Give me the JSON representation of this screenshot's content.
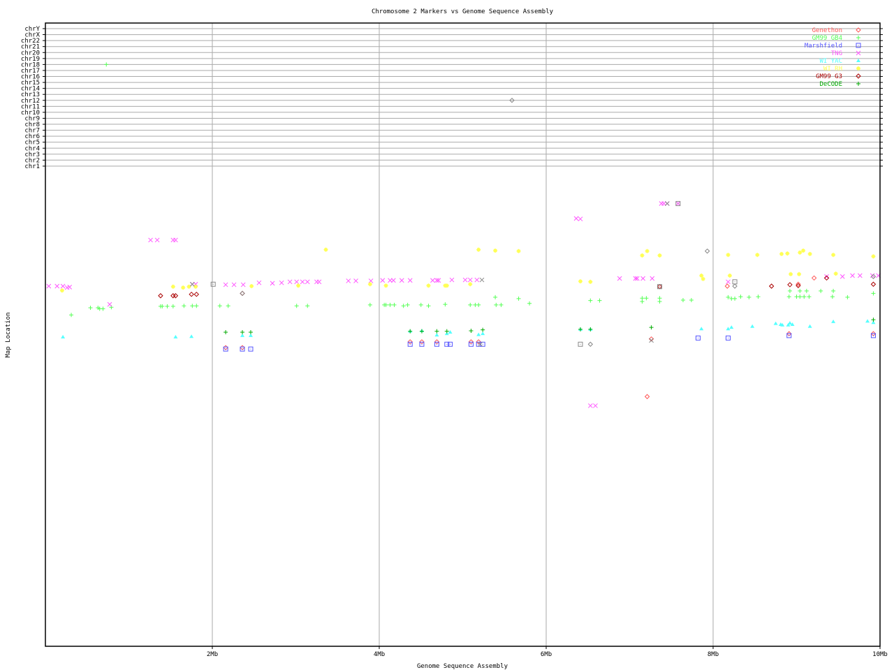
{
  "chart_data": {
    "type": "scatter",
    "title": "Chromosome 2 Markers vs Genome Sequence Assembly",
    "xlabel": "Genome Sequence Assembly",
    "ylabel": "Map Location",
    "xlim": [
      0,
      10
    ],
    "x_ticks": [
      {
        "value": 2,
        "label": "2Mb"
      },
      {
        "value": 4,
        "label": "4Mb"
      },
      {
        "value": 6,
        "label": "6Mb"
      },
      {
        "value": 8,
        "label": "8Mb"
      },
      {
        "value": 10,
        "label": "10Mb"
      }
    ],
    "ylim": [
      0,
      100
    ],
    "chromosome_rows": [
      "chr1",
      "chr2",
      "chr3",
      "chr4",
      "chr5",
      "chr6",
      "chr7",
      "chr8",
      "chr9",
      "chr10",
      "chr11",
      "chr12",
      "chr13",
      "chr14",
      "chr15",
      "chr16",
      "chr17",
      "chr18",
      "chr19",
      "chr20",
      "chr21",
      "chr22",
      "chrX",
      "chrY"
    ],
    "grid": true,
    "legend_position": "top-right",
    "series": [
      {
        "name": "Genethon",
        "color": "#ff5555",
        "marker": "diamond",
        "points": [
          [
            2.16,
            62.2
          ],
          [
            2.36,
            62.2
          ],
          [
            4.37,
            63.4
          ],
          [
            4.51,
            63.4
          ],
          [
            4.69,
            63.4
          ],
          [
            5.1,
            63.4
          ],
          [
            5.19,
            63.4
          ],
          [
            7.26,
            64.0
          ],
          [
            8.91,
            65.1
          ],
          [
            9.92,
            65.1
          ],
          [
            7.21,
            52.0
          ],
          [
            8.17,
            75.0
          ],
          [
            9.02,
            75.4
          ],
          [
            9.21,
            76.7
          ]
        ]
      },
      {
        "name": "GM99 GB4",
        "color": "#55ff55",
        "marker": "plus",
        "points": [
          [
            0.73,
            "chr18"
          ],
          [
            0.31,
            69.0
          ],
          [
            0.54,
            70.5
          ],
          [
            0.63,
            70.5
          ],
          [
            0.65,
            70.3
          ],
          [
            0.69,
            70.3
          ],
          [
            0.79,
            70.6
          ],
          [
            1.38,
            70.8
          ],
          [
            1.4,
            70.8
          ],
          [
            1.46,
            70.8
          ],
          [
            1.53,
            70.8
          ],
          [
            1.66,
            70.9
          ],
          [
            1.76,
            70.9
          ],
          [
            1.81,
            70.9
          ],
          [
            2.09,
            70.9
          ],
          [
            2.19,
            70.9
          ],
          [
            3.01,
            70.9
          ],
          [
            3.14,
            70.9
          ],
          [
            3.89,
            71.1
          ],
          [
            4.06,
            71.1
          ],
          [
            4.08,
            71.1
          ],
          [
            4.13,
            71.1
          ],
          [
            4.18,
            71.1
          ],
          [
            4.29,
            70.9
          ],
          [
            4.34,
            71.1
          ],
          [
            4.5,
            71.1
          ],
          [
            4.59,
            70.9
          ],
          [
            4.79,
            71.2
          ],
          [
            5.09,
            71.1
          ],
          [
            5.15,
            71.1
          ],
          [
            5.19,
            71.1
          ],
          [
            5.4,
            71.1
          ],
          [
            5.46,
            71.1
          ],
          [
            5.39,
            72.7
          ],
          [
            5.67,
            72.4
          ],
          [
            5.8,
            71.4
          ],
          [
            6.53,
            72.0
          ],
          [
            6.64,
            72.0
          ],
          [
            7.15,
            72.5
          ],
          [
            7.15,
            71.8
          ],
          [
            7.2,
            72.5
          ],
          [
            7.36,
            72.5
          ],
          [
            7.36,
            71.8
          ],
          [
            7.64,
            72.1
          ],
          [
            7.74,
            72.1
          ],
          [
            8.18,
            72.7
          ],
          [
            8.22,
            72.4
          ],
          [
            8.26,
            72.4
          ],
          [
            8.33,
            72.8
          ],
          [
            8.43,
            72.7
          ],
          [
            8.54,
            72.8
          ],
          [
            8.91,
            72.8
          ],
          [
            9.0,
            72.8
          ],
          [
            9.04,
            72.8
          ],
          [
            9.09,
            72.8
          ],
          [
            9.15,
            72.8
          ],
          [
            8.92,
            74.0
          ],
          [
            9.04,
            74.0
          ],
          [
            9.12,
            74.0
          ],
          [
            9.29,
            74.0
          ],
          [
            9.43,
            72.8
          ],
          [
            9.44,
            74.0
          ],
          [
            9.61,
            72.7
          ],
          [
            9.92,
            73.5
          ]
        ]
      },
      {
        "name": "Marshfield",
        "color": "#5555ff",
        "marker": "square",
        "points": [
          [
            2.16,
            61.9
          ],
          [
            2.36,
            61.9
          ],
          [
            2.46,
            61.9
          ],
          [
            4.37,
            62.9
          ],
          [
            4.51,
            62.9
          ],
          [
            4.69,
            62.9
          ],
          [
            4.81,
            62.9
          ],
          [
            4.85,
            62.9
          ],
          [
            5.1,
            62.9
          ],
          [
            5.19,
            62.9
          ],
          [
            5.24,
            62.9
          ],
          [
            7.82,
            64.2
          ],
          [
            8.18,
            64.2
          ],
          [
            8.91,
            64.7
          ],
          [
            9.92,
            64.7
          ]
        ]
      },
      {
        "name": "TNG",
        "color": "#ff55ff",
        "marker": "x",
        "points": [
          [
            0.04,
            75.0
          ],
          [
            0.14,
            75.0
          ],
          [
            0.21,
            75.0
          ],
          [
            0.26,
            74.7
          ],
          [
            0.29,
            74.8
          ],
          [
            0.77,
            71.2
          ],
          [
            1.26,
            84.6
          ],
          [
            1.34,
            84.6
          ],
          [
            1.53,
            84.6
          ],
          [
            1.56,
            84.6
          ],
          [
            1.76,
            75.4
          ],
          [
            1.8,
            75.4
          ],
          [
            2.16,
            75.3
          ],
          [
            2.26,
            75.3
          ],
          [
            2.37,
            75.3
          ],
          [
            2.56,
            75.7
          ],
          [
            2.72,
            75.6
          ],
          [
            2.83,
            75.7
          ],
          [
            2.93,
            75.9
          ],
          [
            3.01,
            75.9
          ],
          [
            3.08,
            75.9
          ],
          [
            3.14,
            75.9
          ],
          [
            3.25,
            75.9
          ],
          [
            3.28,
            75.9
          ],
          [
            3.63,
            76.1
          ],
          [
            3.72,
            76.1
          ],
          [
            3.9,
            76.1
          ],
          [
            4.04,
            76.2
          ],
          [
            4.13,
            76.2
          ],
          [
            4.17,
            76.2
          ],
          [
            4.27,
            76.2
          ],
          [
            4.37,
            76.2
          ],
          [
            4.64,
            76.2
          ],
          [
            4.69,
            76.2
          ],
          [
            4.71,
            76.2
          ],
          [
            4.87,
            76.3
          ],
          [
            5.03,
            76.3
          ],
          [
            5.09,
            76.3
          ],
          [
            5.17,
            76.3
          ],
          [
            6.36,
            89.1
          ],
          [
            6.41,
            89.0
          ],
          [
            7.38,
            92.2
          ],
          [
            7.41,
            92.2
          ],
          [
            7.45,
            92.2
          ],
          [
            7.58,
            92.2
          ],
          [
            6.88,
            76.6
          ],
          [
            7.07,
            76.6
          ],
          [
            7.09,
            76.6
          ],
          [
            7.16,
            76.6
          ],
          [
            7.27,
            76.6
          ],
          [
            8.18,
            75.9
          ],
          [
            9.36,
            77.0
          ],
          [
            9.55,
            77.0
          ],
          [
            9.67,
            77.2
          ],
          [
            9.76,
            77.2
          ],
          [
            9.91,
            77.2
          ],
          [
            9.98,
            77.2
          ],
          [
            6.53,
            50.1
          ],
          [
            6.59,
            50.1
          ]
        ]
      },
      {
        "name": "WI YAC",
        "color": "#55ffff",
        "marker": "triangle",
        "points": [
          [
            0.21,
            64.4
          ],
          [
            1.56,
            64.4
          ],
          [
            1.75,
            64.5
          ],
          [
            2.36,
            64.7
          ],
          [
            2.46,
            64.7
          ],
          [
            4.37,
            65.6
          ],
          [
            4.51,
            65.7
          ],
          [
            4.69,
            64.8
          ],
          [
            4.81,
            65.1
          ],
          [
            4.85,
            65.4
          ],
          [
            5.19,
            64.9
          ],
          [
            5.24,
            65.1
          ],
          [
            6.41,
            66.0
          ],
          [
            6.53,
            66.0
          ],
          [
            7.86,
            66.1
          ],
          [
            8.18,
            66.1
          ],
          [
            8.22,
            66.4
          ],
          [
            8.47,
            66.6
          ],
          [
            8.75,
            67.2
          ],
          [
            8.81,
            67.0
          ],
          [
            8.83,
            66.9
          ],
          [
            8.9,
            66.9
          ],
          [
            8.92,
            67.3
          ],
          [
            8.95,
            67.0
          ],
          [
            9.16,
            66.6
          ],
          [
            9.44,
            67.6
          ],
          [
            9.85,
            67.7
          ],
          [
            9.92,
            67.4
          ]
        ]
      },
      {
        "name": "WI RH",
        "color": "#ffff55",
        "marker": "star",
        "points": [
          [
            0.2,
            74.1
          ],
          [
            1.53,
            74.9
          ],
          [
            1.65,
            74.7
          ],
          [
            1.72,
            74.9
          ],
          [
            1.8,
            74.9
          ],
          [
            2.47,
            75.0
          ],
          [
            3.03,
            75.1
          ],
          [
            3.36,
            82.6
          ],
          [
            3.89,
            75.4
          ],
          [
            4.08,
            75.1
          ],
          [
            4.59,
            75.1
          ],
          [
            4.79,
            75.1
          ],
          [
            4.81,
            75.1
          ],
          [
            5.09,
            75.4
          ],
          [
            5.19,
            82.6
          ],
          [
            5.39,
            82.4
          ],
          [
            5.67,
            82.3
          ],
          [
            6.41,
            76.0
          ],
          [
            6.53,
            75.9
          ],
          [
            7.15,
            81.4
          ],
          [
            7.21,
            82.3
          ],
          [
            7.36,
            81.4
          ],
          [
            7.86,
            77.2
          ],
          [
            7.88,
            76.5
          ],
          [
            8.18,
            81.5
          ],
          [
            8.53,
            81.5
          ],
          [
            8.82,
            81.7
          ],
          [
            8.89,
            81.8
          ],
          [
            9.04,
            82.0
          ],
          [
            9.08,
            82.4
          ],
          [
            9.16,
            81.7
          ],
          [
            9.44,
            81.5
          ],
          [
            9.92,
            81.2
          ],
          [
            8.2,
            77.2
          ],
          [
            8.93,
            77.5
          ],
          [
            9.03,
            77.5
          ],
          [
            9.47,
            77.6
          ]
        ]
      },
      {
        "name": "GM99 G3",
        "color": "#aa0000",
        "marker": "diamond",
        "points": [
          [
            1.38,
            73.0
          ],
          [
            1.53,
            73.0
          ],
          [
            1.56,
            73.0
          ],
          [
            1.75,
            73.3
          ],
          [
            1.81,
            73.3
          ],
          [
            2.36,
            73.5
          ],
          [
            7.36,
            74.9
          ],
          [
            8.7,
            75.0
          ],
          [
            8.92,
            75.3
          ],
          [
            9.02,
            75.1
          ],
          [
            9.36,
            76.7
          ],
          [
            9.92,
            75.4
          ]
        ]
      },
      {
        "name": "DeCODE",
        "color": "#00aa00",
        "marker": "plus",
        "points": [
          [
            2.16,
            65.4
          ],
          [
            2.36,
            65.4
          ],
          [
            2.46,
            65.4
          ],
          [
            4.37,
            65.6
          ],
          [
            4.51,
            65.6
          ],
          [
            4.69,
            65.6
          ],
          [
            4.81,
            65.6
          ],
          [
            5.1,
            65.7
          ],
          [
            5.24,
            65.9
          ],
          [
            6.41,
            66.0
          ],
          [
            6.53,
            66.0
          ],
          [
            7.26,
            66.4
          ],
          [
            9.92,
            68.0
          ]
        ]
      },
      {
        "name": "",
        "color": "#888888",
        "marker": "mixed",
        "points": [
          [
            5.59,
            "chr12"
          ],
          [
            7.45,
            92.2
          ],
          [
            7.58,
            92.2
          ],
          [
            7.93,
            82.3
          ],
          [
            1.76,
            75.4
          ],
          [
            2.01,
            75.4
          ],
          [
            2.36,
            73.5
          ],
          [
            5.23,
            76.3
          ],
          [
            6.41,
            62.9
          ],
          [
            6.53,
            62.9
          ],
          [
            7.26,
            63.7
          ],
          [
            8.26,
            75.9
          ],
          [
            9.92,
            77.0
          ],
          [
            5.21,
            62.9
          ],
          [
            7.36,
            74.9
          ],
          [
            8.26,
            75.0
          ]
        ]
      }
    ]
  }
}
